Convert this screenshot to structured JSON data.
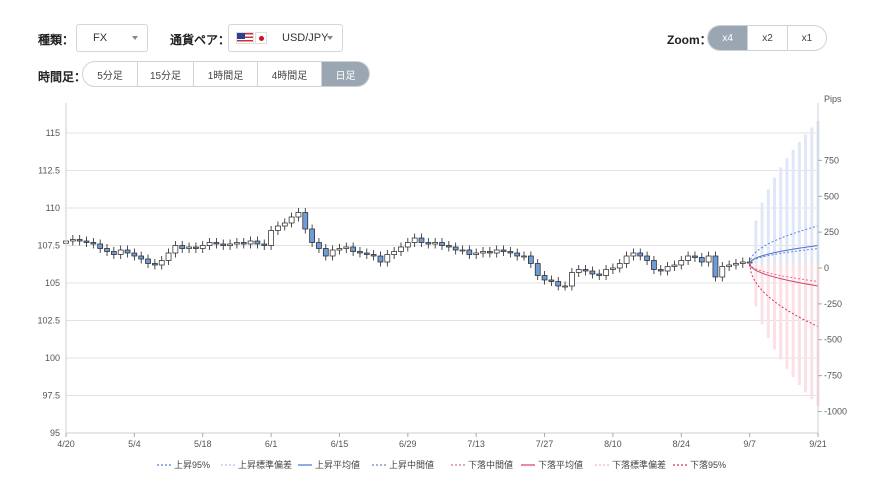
{
  "filters": {
    "type_label": "種類：",
    "type_value": "FX",
    "pair_label": "通貨ペア：",
    "pair_value": "USD/JPY",
    "zoom_label": "Zoom：",
    "zoom_options": [
      "x4",
      "x2",
      "x1"
    ],
    "zoom_selected": "x4",
    "timeframe_label": "時間足：",
    "timeframe_options": [
      "5分足",
      "15分足",
      "1時間足",
      "4時間足",
      "日足"
    ],
    "timeframe_selected": "日足"
  },
  "chart_data": {
    "type": "candlestick",
    "xlabel": "",
    "ylabel": "",
    "y2label": "Pips",
    "ylim": [
      95,
      117
    ],
    "y_ticks": [
      "115",
      "112.5",
      "110",
      "107.5",
      "105",
      "102.5",
      "100",
      "97.5",
      "95"
    ],
    "y2lim": [
      -1150,
      1150
    ],
    "y2_ticks": [
      "750",
      "500",
      "250",
      "0",
      "-250",
      "-500",
      "-750",
      "-1000"
    ],
    "x_ticks": [
      "4/20",
      "5/4",
      "5/18",
      "6/1",
      "6/15",
      "6/29",
      "7/13",
      "7/27",
      "8/10",
      "8/24",
      "9/7",
      "9/21"
    ],
    "closes": [
      107.8,
      107.9,
      107.8,
      107.7,
      107.6,
      107.3,
      107.1,
      106.9,
      107.2,
      107.0,
      106.8,
      106.6,
      106.3,
      106.2,
      106.5,
      107.0,
      107.5,
      107.3,
      107.4,
      107.3,
      107.5,
      107.7,
      107.6,
      107.5,
      107.6,
      107.7,
      107.6,
      107.8,
      107.6,
      107.5,
      108.5,
      108.8,
      109.0,
      109.4,
      109.7,
      108.6,
      107.7,
      107.3,
      106.8,
      107.2,
      107.3,
      107.4,
      107.1,
      107.0,
      106.9,
      106.8,
      106.4,
      106.9,
      107.1,
      107.4,
      107.7,
      108.0,
      107.7,
      107.6,
      107.7,
      107.5,
      107.4,
      107.2,
      107.2,
      106.9,
      107.0,
      107.1,
      107.0,
      107.2,
      107.1,
      107.0,
      106.8,
      106.8,
      106.3,
      105.5,
      105.2,
      105.1,
      104.8,
      104.8,
      105.7,
      105.9,
      105.8,
      105.6,
      105.5,
      105.9,
      106.0,
      106.3,
      106.8,
      107.0,
      106.8,
      106.5,
      105.9,
      105.8,
      106.1,
      106.2,
      106.5,
      106.8,
      106.7,
      106.4,
      106.8,
      105.4,
      106.1,
      106.2,
      106.3,
      106.4,
      106.4
    ],
    "forecast": {
      "start_date": "9/7",
      "end_date": "9/21",
      "start_price": 106.3,
      "up_95": 250,
      "up_mean": 120,
      "up_median": 100,
      "up_std_bars": 950,
      "down_median": -120,
      "down_mean": -150,
      "down_95": -420,
      "down_std_bars": -950
    },
    "legend": [
      "上昇95%",
      "上昇標準偏差",
      "上昇平均値",
      "上昇中間値",
      "下落中間値",
      "下落平均値",
      "下落標準偏差",
      "下落95%"
    ],
    "legend_colors": [
      "#5b7fd6",
      "#aec3ef",
      "#4a70d0",
      "#6b86c9",
      "#e06f8a",
      "#d4405e",
      "#f2b6c4",
      "#d9304f"
    ],
    "colors": {
      "up_candle": "#ffffff",
      "down_candle": "#6f9bd6",
      "grid": "#e3e3e3"
    }
  }
}
